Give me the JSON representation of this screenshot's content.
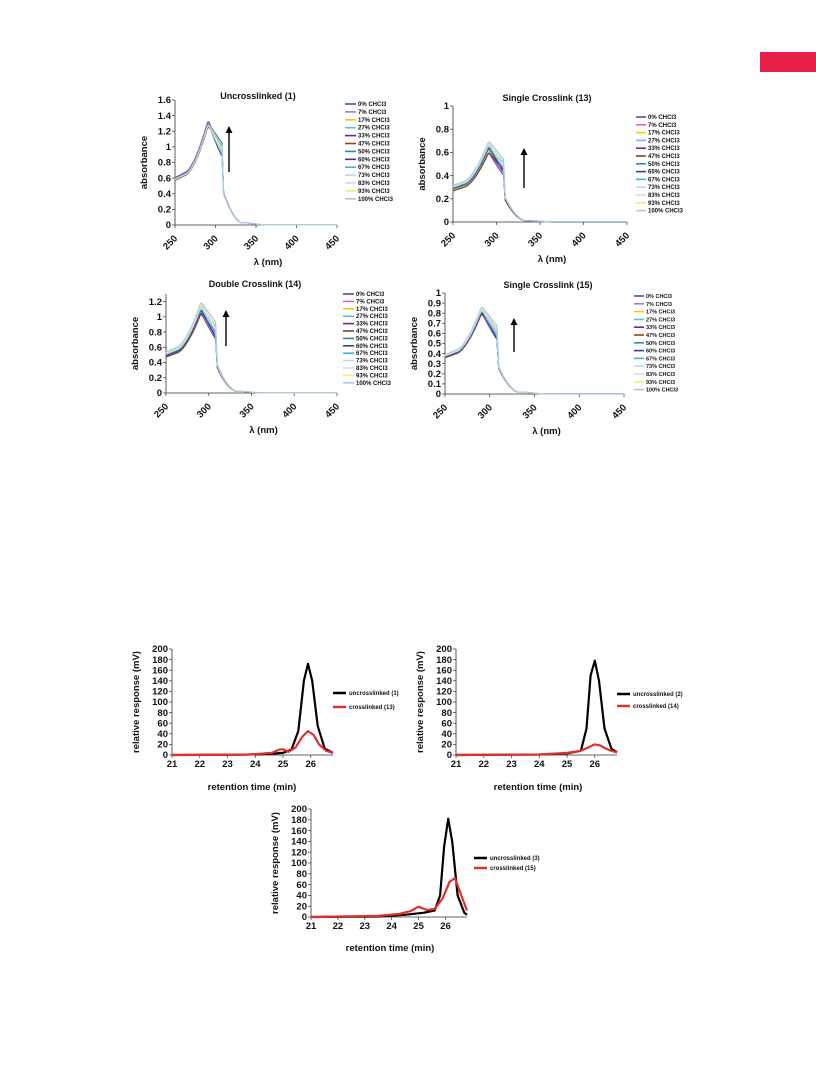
{
  "page": {
    "accent_tab_color": "#e8204a"
  },
  "chart_data": [
    {
      "type": "line",
      "title": "Uncrosslinked (1)",
      "xlabel": "λ (nm)",
      "ylabel": "absorbance",
      "x_ticks": [
        "250",
        "300",
        "350",
        "400",
        "450"
      ],
      "y_ticks": [
        "0",
        "0.2",
        "0.4",
        "0.6",
        "0.8",
        "1",
        "1.2",
        "1.4",
        "1.6"
      ],
      "xlim": [
        250,
        450
      ],
      "ylim": [
        0,
        1.6
      ],
      "legend_position": "right",
      "arrow": "up",
      "series": [
        {
          "name": "0% CHCl3",
          "peak": 1.35
        },
        {
          "name": "7% CHCl3",
          "peak": 1.33
        },
        {
          "name": "17% CHCl3",
          "peak": 1.3
        },
        {
          "name": "27% CHCl3",
          "peak": 1.3
        },
        {
          "name": "33% CHCl3",
          "peak": 1.28
        },
        {
          "name": "47% CHCl3",
          "peak": 1.27
        },
        {
          "name": "50% CHCl3",
          "peak": 1.31
        },
        {
          "name": "60% CHCl3",
          "peak": 1.3
        },
        {
          "name": "67% CHCl3",
          "peak": 1.3
        },
        {
          "name": "73% CHCl3",
          "peak": 1.3
        },
        {
          "name": "83% CHCl3",
          "peak": 1.29
        },
        {
          "name": "93% CHCl3",
          "peak": 1.29
        },
        {
          "name": "100% CHCl3",
          "peak": 1.3
        }
      ]
    },
    {
      "type": "line",
      "title": "Single Crosslink (13)",
      "xlabel": "λ (nm)",
      "ylabel": "absorbance",
      "x_ticks": [
        "250",
        "300",
        "350",
        "400",
        "450"
      ],
      "y_ticks": [
        "0",
        "0.2",
        "0.4",
        "0.6",
        "0.8",
        "1"
      ],
      "xlim": [
        250,
        450
      ],
      "ylim": [
        0,
        1
      ],
      "legend_position": "right",
      "arrow": "up",
      "series": [
        {
          "name": "0% CHCl3",
          "peak": 0.6
        },
        {
          "name": "7% CHCl3",
          "peak": 0.61
        },
        {
          "name": "17% CHCl3",
          "peak": 0.62
        },
        {
          "name": "27% CHCl3",
          "peak": 0.63
        },
        {
          "name": "33% CHCl3",
          "peak": 0.6
        },
        {
          "name": "47% CHCl3",
          "peak": 0.6
        },
        {
          "name": "50% CHCl3",
          "peak": 0.64
        },
        {
          "name": "60% CHCl3",
          "peak": 0.65
        },
        {
          "name": "67% CHCl3",
          "peak": 0.66
        },
        {
          "name": "73% CHCl3",
          "peak": 0.67
        },
        {
          "name": "83% CHCl3",
          "peak": 0.68
        },
        {
          "name": "93% CHCl3",
          "peak": 0.69
        },
        {
          "name": "100% CHCl3",
          "peak": 0.7
        }
      ]
    },
    {
      "type": "line",
      "title": "Double Crosslink (14)",
      "xlabel": "λ (nm)",
      "ylabel": "absorbance",
      "x_ticks": [
        "250",
        "300",
        "350",
        "400",
        "450"
      ],
      "y_ticks": [
        "0",
        "0.2",
        "0.4",
        "0.6",
        "0.8",
        "1",
        "1.2"
      ],
      "xlim": [
        250,
        450
      ],
      "ylim": [
        0,
        1.3
      ],
      "legend_position": "right",
      "arrow": "up",
      "series": [
        {
          "name": "0% CHCl3",
          "peak": 1.05
        },
        {
          "name": "7% CHCl3",
          "peak": 1.06
        },
        {
          "name": "17% CHCl3",
          "peak": 1.07
        },
        {
          "name": "27% CHCl3",
          "peak": 1.08
        },
        {
          "name": "33% CHCl3",
          "peak": 1.06
        },
        {
          "name": "47% CHCl3",
          "peak": 1.05
        },
        {
          "name": "50% CHCl3",
          "peak": 1.09
        },
        {
          "name": "60% CHCl3",
          "peak": 1.1
        },
        {
          "name": "67% CHCl3",
          "peak": 1.12
        },
        {
          "name": "73% CHCl3",
          "peak": 1.14
        },
        {
          "name": "83% CHCl3",
          "peak": 1.16
        },
        {
          "name": "93% CHCl3",
          "peak": 1.18
        },
        {
          "name": "100% CHCl3",
          "peak": 1.2
        }
      ]
    },
    {
      "type": "line",
      "title": "Single Crosslink (15)",
      "xlabel": "λ (nm)",
      "ylabel": "absorbance",
      "x_ticks": [
        "250",
        "300",
        "350",
        "400",
        "450"
      ],
      "y_ticks": [
        "0",
        "0.1",
        "0.2",
        "0.3",
        "0.4",
        "0.5",
        "0.6",
        "0.7",
        "0.8",
        "0.9",
        "1"
      ],
      "xlim": [
        250,
        450
      ],
      "ylim": [
        0,
        1
      ],
      "legend_position": "right",
      "arrow": "up",
      "series": [
        {
          "name": "0% CHCl3",
          "peak": 0.8
        },
        {
          "name": "7% CHCl3",
          "peak": 0.8
        },
        {
          "name": "17% CHCl3",
          "peak": 0.84
        },
        {
          "name": "27% CHCl3",
          "peak": 0.81
        },
        {
          "name": "33% CHCl3",
          "peak": 0.8
        },
        {
          "name": "47% CHCl3",
          "peak": 0.81
        },
        {
          "name": "50% CHCl3",
          "peak": 0.82
        },
        {
          "name": "60% CHCl3",
          "peak": 0.82
        },
        {
          "name": "67% CHCl3",
          "peak": 0.83
        },
        {
          "name": "73% CHCl3",
          "peak": 0.84
        },
        {
          "name": "83% CHCl3",
          "peak": 0.85
        },
        {
          "name": "93% CHCl3",
          "peak": 0.86
        },
        {
          "name": "100% CHCl3",
          "peak": 0.87
        }
      ]
    },
    {
      "type": "line",
      "title": "",
      "xlabel": "retention time (min)",
      "ylabel": "relative response (mV)",
      "x_ticks": [
        "21",
        "22",
        "23",
        "24",
        "25",
        "26"
      ],
      "y_ticks": [
        "0",
        "20",
        "40",
        "60",
        "80",
        "100",
        "120",
        "140",
        "160",
        "180",
        "200"
      ],
      "xlim": [
        21,
        26.8
      ],
      "ylim": [
        0,
        200
      ],
      "legend_position": "right",
      "series": [
        {
          "name": "uncrosslinked (1)",
          "color": "#000000",
          "x": [
            21,
            23.5,
            24.5,
            25.0,
            25.3,
            25.55,
            25.75,
            25.9,
            26.05,
            26.25,
            26.5,
            26.8
          ],
          "y": [
            0,
            0.5,
            2,
            4,
            10,
            45,
            140,
            172,
            140,
            55,
            12,
            4
          ]
        },
        {
          "name": "crosslinked (13)",
          "color": "#e03030",
          "x": [
            21,
            23.8,
            24.6,
            24.85,
            25.0,
            25.2,
            25.45,
            25.7,
            25.9,
            26.1,
            26.3,
            26.55,
            26.8
          ],
          "y": [
            0,
            1,
            4,
            10,
            11,
            6,
            14,
            35,
            45,
            38,
            20,
            8,
            4
          ]
        }
      ]
    },
    {
      "type": "line",
      "title": "",
      "xlabel": "retention time (min)",
      "ylabel": "relative response (mV)",
      "x_ticks": [
        "21",
        "22",
        "23",
        "24",
        "25",
        "26"
      ],
      "y_ticks": [
        "0",
        "20",
        "40",
        "60",
        "80",
        "100",
        "120",
        "140",
        "160",
        "180",
        "200"
      ],
      "xlim": [
        21,
        26.8
      ],
      "ylim": [
        0,
        200
      ],
      "legend_position": "right",
      "series": [
        {
          "name": "uncrosslinked (2)",
          "color": "#000000",
          "x": [
            21,
            24,
            25,
            25.5,
            25.7,
            25.85,
            26.0,
            26.15,
            26.35,
            26.6,
            26.8
          ],
          "y": [
            0,
            1,
            3,
            8,
            50,
            150,
            178,
            140,
            50,
            12,
            5
          ]
        },
        {
          "name": "crosslinked (14)",
          "color": "#e03030",
          "x": [
            21,
            24,
            25,
            25.5,
            25.8,
            26.0,
            26.2,
            26.4,
            26.6,
            26.8
          ],
          "y": [
            0,
            1,
            4,
            8,
            15,
            20,
            18,
            12,
            8,
            5
          ]
        }
      ]
    },
    {
      "type": "line",
      "title": "",
      "xlabel": "retention time (min)",
      "ylabel": "relative response (mV)",
      "x_ticks": [
        "21",
        "22",
        "23",
        "24",
        "25",
        "26"
      ],
      "y_ticks": [
        "0",
        "20",
        "40",
        "60",
        "80",
        "100",
        "120",
        "140",
        "160",
        "180",
        "200"
      ],
      "xlim": [
        21,
        26.8
      ],
      "ylim": [
        0,
        200
      ],
      "legend_position": "right",
      "series": [
        {
          "name": "uncrosslinked (3)",
          "color": "#000000",
          "x": [
            21,
            23.5,
            24.5,
            25.2,
            25.6,
            25.8,
            25.95,
            26.1,
            26.25,
            26.45,
            26.7,
            26.8
          ],
          "y": [
            0,
            1,
            4,
            8,
            12,
            40,
            130,
            182,
            140,
            40,
            8,
            4
          ]
        },
        {
          "name": "crosslinked (15)",
          "color": "#e03030",
          "x": [
            21,
            23.5,
            24.3,
            24.7,
            25.0,
            25.3,
            25.6,
            25.9,
            26.15,
            26.35,
            26.55,
            26.8
          ],
          "y": [
            0,
            2,
            6,
            11,
            19,
            13,
            15,
            35,
            65,
            72,
            45,
            12
          ]
        }
      ]
    }
  ]
}
